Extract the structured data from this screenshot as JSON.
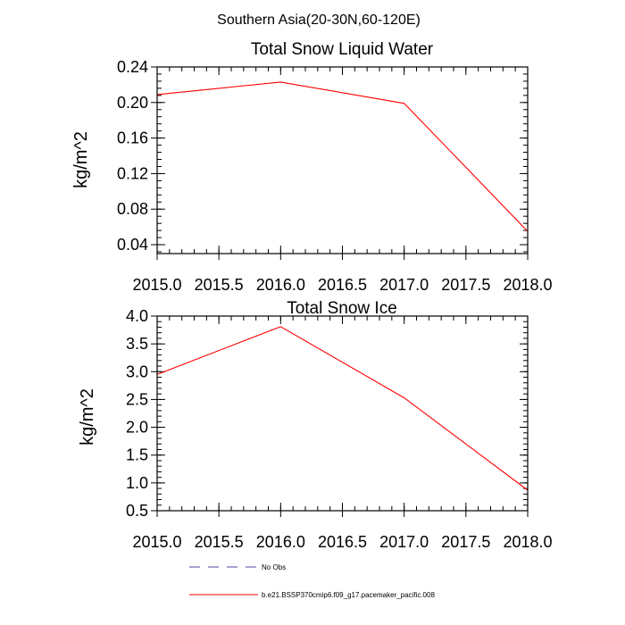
{
  "figure": {
    "suptitle": "Southern Asia(20-30N,60-120E)"
  },
  "legend": {
    "items": [
      {
        "label": "No Obs",
        "color": "#4a4aa0",
        "dash": true
      },
      {
        "label": "b.e21.BSSP370cmip6.f09_g17.pacemaker_pacific.008",
        "color": "#ff0000",
        "dash": false
      }
    ]
  },
  "chart_data": [
    {
      "type": "line",
      "title": "Total Snow Liquid Water",
      "xlabel": "",
      "ylabel": "kg/m^2",
      "xlim": [
        2015.0,
        2018.0
      ],
      "ylim": [
        0.03,
        0.24
      ],
      "xticks": [
        2015.0,
        2015.5,
        2016.0,
        2016.5,
        2017.0,
        2017.5,
        2018.0
      ],
      "xtick_labels": [
        "2015.0",
        "2015.5",
        "2016.0",
        "2016.5",
        "2017.0",
        "2017.5",
        "2018.0"
      ],
      "yticks": [
        0.04,
        0.08,
        0.12,
        0.16,
        0.2,
        0.24
      ],
      "ytick_labels": [
        "0.04",
        "0.08",
        "0.12",
        "0.16",
        "0.20",
        "0.24"
      ],
      "yminor_step": 0.008,
      "xminor_step": 0.1,
      "series": [
        {
          "name": "b.e21.BSSP370cmip6.f09_g17.pacemaker_pacific.008",
          "color": "#ff0000",
          "x": [
            2015.0,
            2016.0,
            2017.0,
            2018.0
          ],
          "y": [
            0.209,
            0.223,
            0.199,
            0.055
          ]
        }
      ]
    },
    {
      "type": "line",
      "title": "Total Snow Ice",
      "xlabel": "",
      "ylabel": "kg/m^2",
      "xlim": [
        2015.0,
        2018.0
      ],
      "ylim": [
        0.5,
        4.0
      ],
      "xticks": [
        2015.0,
        2015.5,
        2016.0,
        2016.5,
        2017.0,
        2017.5,
        2018.0
      ],
      "xtick_labels": [
        "2015.0",
        "2015.5",
        "2016.0",
        "2016.5",
        "2017.0",
        "2017.5",
        "2018.0"
      ],
      "yticks": [
        0.5,
        1.0,
        1.5,
        2.0,
        2.5,
        3.0,
        3.5,
        4.0
      ],
      "ytick_labels": [
        "0.5",
        "1.0",
        "1.5",
        "2.0",
        "2.5",
        "3.0",
        "3.5",
        "4.0"
      ],
      "yminor_step": 0.1,
      "xminor_step": 0.1,
      "series": [
        {
          "name": "b.e21.BSSP370cmip6.f09_g17.pacemaker_pacific.008",
          "color": "#ff0000",
          "x": [
            2015.0,
            2016.0,
            2017.0,
            2018.0
          ],
          "y": [
            2.95,
            3.81,
            2.53,
            0.87
          ]
        }
      ]
    }
  ]
}
